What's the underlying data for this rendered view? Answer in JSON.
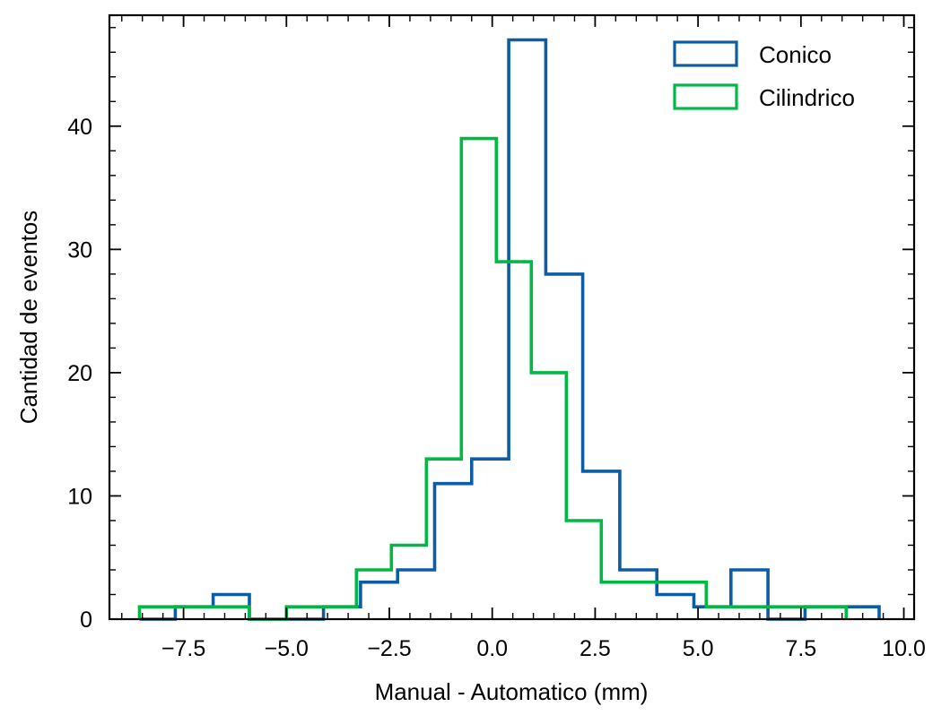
{
  "chart_data": {
    "type": "histogram-step",
    "xlabel": "Manual - Automatico (mm)",
    "ylabel": "Cantidad de eventos",
    "xlim": [
      -9.3,
      10.25
    ],
    "ylim": [
      0,
      49
    ],
    "x_ticks": [
      -7.5,
      -5.0,
      -2.5,
      0.0,
      2.5,
      5.0,
      7.5,
      10.0
    ],
    "x_tick_labels": [
      "−7.5",
      "−5.0",
      "−2.5",
      "0.0",
      "2.5",
      "5.0",
      "7.5",
      "10.0"
    ],
    "y_ticks": [
      0,
      10,
      20,
      30,
      40
    ],
    "y_tick_labels": [
      "0",
      "10",
      "20",
      "30",
      "40"
    ],
    "legend_position": "top-right",
    "grid": false,
    "series": [
      {
        "name": "Conico",
        "color": "#0c5da5",
        "bin_edges": [
          -8.57,
          -7.7,
          -6.78,
          -5.9,
          -5.0,
          -4.1,
          -3.2,
          -2.3,
          -1.4,
          -0.5,
          0.4,
          1.3,
          2.2,
          3.1,
          4.0,
          4.9,
          5.8,
          6.7,
          7.6,
          8.5,
          9.4
        ],
        "counts": [
          0,
          1,
          2,
          0,
          0,
          1,
          3,
          4,
          11,
          13,
          47,
          28,
          12,
          4,
          2,
          1,
          4,
          0,
          1,
          1
        ]
      },
      {
        "name": "Cilindrico",
        "color": "#00b945",
        "bin_edges": [
          -8.57,
          -7.7,
          -6.8,
          -5.9,
          -5.0,
          -4.15,
          -3.3,
          -2.45,
          -1.6,
          -0.75,
          0.1,
          0.95,
          1.8,
          2.65,
          3.5,
          4.35,
          5.2,
          6.05,
          6.9,
          7.75,
          8.6
        ],
        "counts": [
          1,
          1,
          1,
          0,
          1,
          1,
          4,
          6,
          13,
          39,
          29,
          20,
          8,
          3,
          3,
          3,
          1,
          1,
          1,
          1
        ]
      }
    ]
  }
}
